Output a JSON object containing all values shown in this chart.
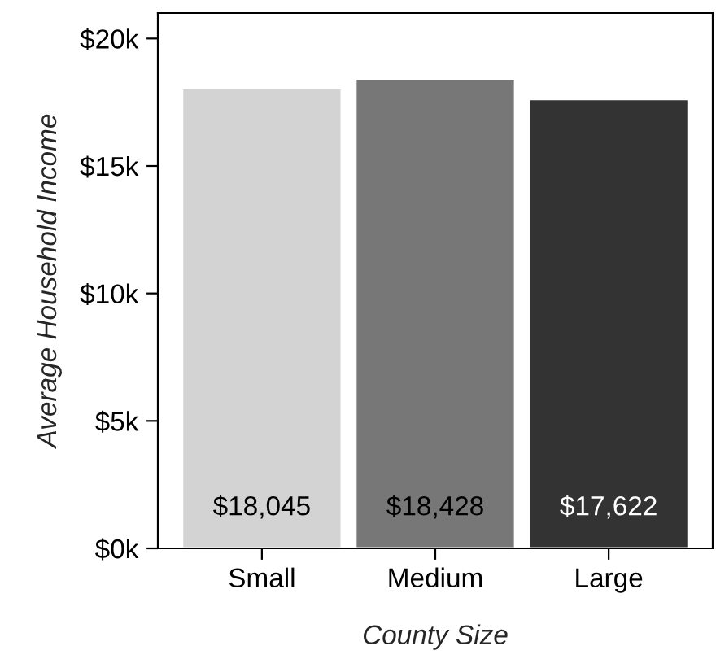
{
  "chart_data": {
    "type": "bar",
    "xlabel": "County Size",
    "ylabel": "Average Household Income",
    "categories": [
      "Small",
      "Medium",
      "Large"
    ],
    "values": [
      18045,
      18428,
      17622
    ],
    "colors": [
      "#d3d3d3",
      "#777777",
      "#333333"
    ],
    "value_labels": [
      "$18,045",
      "$18,428",
      "$17,622"
    ],
    "ylim": [
      0,
      21000
    ],
    "yticks": [
      {
        "value": 0,
        "label": "$0k"
      },
      {
        "value": 5000,
        "label": "$5k"
      },
      {
        "value": 10000,
        "label": "$10k"
      },
      {
        "value": 15000,
        "label": "$15k"
      },
      {
        "value": 20000,
        "label": "$20k"
      }
    ],
    "grid": false,
    "legend": false
  }
}
